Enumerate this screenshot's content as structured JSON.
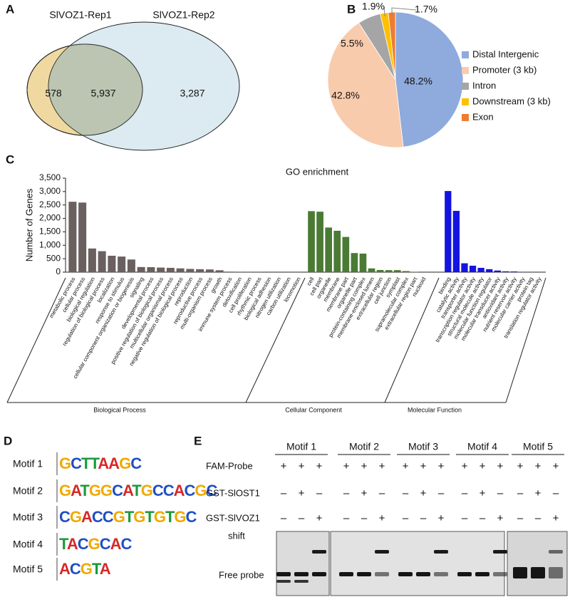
{
  "panels": [
    "A",
    "B",
    "C",
    "D",
    "E"
  ],
  "chart_data": [
    {
      "type": "venn",
      "sets": [
        {
          "name": "SlVOZ1-Rep1",
          "color": "#f0d9a0"
        },
        {
          "name": "SlVOZ1-Rep2",
          "color": "#bfd9e6"
        }
      ],
      "values": [
        578,
        5937,
        3287
      ],
      "value_labels": [
        "578",
        "5,937",
        "3,287"
      ]
    },
    {
      "type": "pie",
      "categories": [
        "Distal Intergenic",
        "Promoter (3 kb)",
        "Intron",
        "Downstream (3 kb)",
        "Exon"
      ],
      "values": [
        48.2,
        42.8,
        5.5,
        1.9,
        1.7
      ],
      "value_labels": [
        "48.2%",
        "42.8%",
        "5.5%",
        "1.9%",
        "1.7%"
      ],
      "colors": [
        "#8faadc",
        "#f8cbad",
        "#a5a5a5",
        "#ffc000",
        "#ed7d31"
      ],
      "legend": "right"
    },
    {
      "type": "bar",
      "title": "GO enrichment",
      "y_label": "Number of Genes",
      "ylim": [
        0,
        3500
      ],
      "yticks": [
        0,
        500,
        {
          "value": 1000,
          "label": "1,000"
        },
        {
          "value": 1500,
          "label": "1,500"
        },
        {
          "value": 2000,
          "label": "2,000"
        },
        {
          "value": 2500,
          "label": "2,500"
        },
        {
          "value": 3000,
          "label": "3,000"
        },
        {
          "value": 3500,
          "label": "3,500"
        }
      ],
      "groups": [
        {
          "name": "Biological Process",
          "color": "#6a605f",
          "categories": [
            "metabolic process",
            "cellular process",
            "biological regulation",
            "regulation of biological process",
            "localization",
            "response to stimulus",
            "cellular component organization or biogenesis",
            "signaling",
            "developmental process",
            "positive regulation of biological process",
            "multicellular organismal process",
            "negative regulation of biological process",
            "reproduction",
            "reproductive process",
            "multi-organism process",
            "growth",
            "immune system process",
            "detoxification",
            "cell proliferation",
            "rhythmic process",
            "biological adhesion",
            "nitrogen utilization",
            "carbon utilization",
            "locomotion"
          ],
          "values": [
            2620,
            2590,
            880,
            780,
            610,
            580,
            470,
            190,
            185,
            170,
            160,
            140,
            120,
            110,
            100,
            70,
            20,
            5,
            5,
            5,
            0,
            0,
            0,
            0
          ]
        },
        {
          "name": "Cellular Component",
          "color": "#4a7a34",
          "categories": [
            "cell",
            "cell part",
            "organelle",
            "membrane",
            "membrane part",
            "organelle part",
            "protein-containing complex",
            "membrane-enclosed lumen",
            "extracellular region",
            "cell junction",
            "symplast",
            "supramolecular complex",
            "extracellular region part",
            "nucleoid"
          ],
          "values": [
            2270,
            2250,
            1660,
            1540,
            1310,
            710,
            690,
            140,
            80,
            75,
            75,
            40,
            15,
            0
          ]
        },
        {
          "name": "Molecular Function",
          "color": "#1414e0",
          "categories": [
            "binding",
            "catalytic activity",
            "transporter activity",
            "transcription regulator activity",
            "structural molecule activity",
            "molecular function regulator",
            "molecular transducer activity",
            "antioxidant activity",
            "nutrient reservoir activity",
            "molecular carrier activity",
            "protein tag",
            "translation regulator activity"
          ],
          "values": [
            3020,
            2280,
            330,
            240,
            160,
            110,
            60,
            30,
            25,
            5,
            0,
            0
          ]
        }
      ]
    }
  ],
  "motifs": [
    {
      "name": "Motif 1",
      "logo": "GCTTAAGC"
    },
    {
      "name": "Motif 2",
      "logo": "GATGGCATGCCACGC"
    },
    {
      "name": "Motif 3",
      "logo": "CGACCGTGTGTGC"
    },
    {
      "name": "Motif 4",
      "logo": "TACGCAC"
    },
    {
      "name": "Motif 5",
      "logo": "ACGTA"
    }
  ],
  "gel": {
    "motifs": [
      "Motif 1",
      "Motif 2",
      "Motif 3",
      "Motif 4",
      "Motif 5"
    ],
    "rows": [
      {
        "label": "FAM-Probe",
        "signs": [
          "+",
          "+",
          "+",
          "+",
          "+",
          "+",
          "+",
          "+",
          "+",
          "+",
          "+",
          "+",
          "+",
          "+",
          "+"
        ]
      },
      {
        "label": "GST-SlOST1",
        "signs": [
          "–",
          "+",
          "–",
          "–",
          "+",
          "–",
          "–",
          "+",
          "–",
          "–",
          "+",
          "–",
          "–",
          "+",
          "–"
        ]
      },
      {
        "label": "GST-SlVOZ1",
        "signs": [
          "–",
          "–",
          "+",
          "–",
          "–",
          "+",
          "–",
          "–",
          "+",
          "–",
          "–",
          "+",
          "–",
          "–",
          "+"
        ]
      }
    ],
    "band_labels": [
      "shift",
      "Free probe"
    ]
  }
}
